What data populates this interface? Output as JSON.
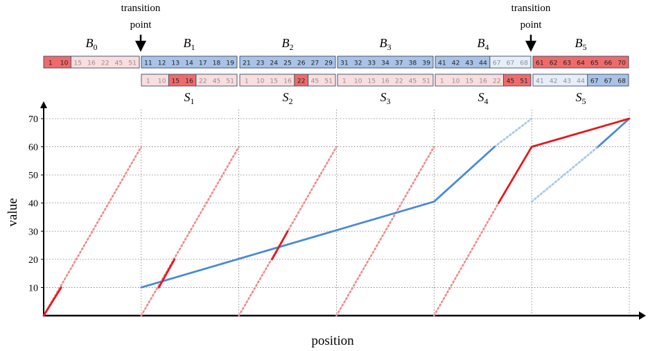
{
  "annotations": {
    "transition_label_line1": "transition",
    "transition_label_line2": "point",
    "xlabel": "position",
    "ylabel": "value"
  },
  "colors": {
    "red_strong": "#ef6b6b",
    "red_light": "#f8dede",
    "blue_strong": "#a9c3e6",
    "blue_light": "#e7eef8",
    "line_red": "#e8161b",
    "line_red_dotted": "#f08a8a",
    "line_blue": "#4a8ad6",
    "line_blue_dotted": "#a8c8ec"
  },
  "blocks_B": [
    {
      "label": "B",
      "sub": "0",
      "groups": [
        {
          "cells": [
            "1",
            "10"
          ],
          "style": "red"
        },
        {
          "cells": [
            "15",
            "16",
            "22",
            "45",
            "51"
          ],
          "style": "red-light"
        }
      ]
    },
    {
      "label": "B",
      "sub": "1",
      "groups": [
        {
          "cells": [
            "11",
            "12",
            "13",
            "14",
            "17",
            "18",
            "19"
          ],
          "style": "blue"
        }
      ]
    },
    {
      "label": "B",
      "sub": "2",
      "groups": [
        {
          "cells": [
            "21",
            "23",
            "24",
            "25",
            "26",
            "27",
            "29"
          ],
          "style": "blue"
        }
      ]
    },
    {
      "label": "B",
      "sub": "3",
      "groups": [
        {
          "cells": [
            "31",
            "32",
            "33",
            "34",
            "37",
            "38",
            "39"
          ],
          "style": "blue"
        }
      ]
    },
    {
      "label": "B",
      "sub": "4",
      "groups": [
        {
          "cells": [
            "41",
            "42",
            "43",
            "44"
          ],
          "style": "blue"
        },
        {
          "cells": [
            "67",
            "67",
            "68"
          ],
          "style": "blue-light"
        }
      ]
    },
    {
      "label": "B",
      "sub": "5",
      "groups": [
        {
          "cells": [
            "61",
            "62",
            "63",
            "64",
            "65",
            "66",
            "70"
          ],
          "style": "red"
        }
      ]
    }
  ],
  "blocks_S": [
    {
      "label": "S",
      "sub": "1",
      "groups": [
        {
          "cells": [
            "1",
            "10"
          ],
          "style": "red-light"
        },
        {
          "cells": [
            "15",
            "16"
          ],
          "style": "red"
        },
        {
          "cells": [
            "22",
            "45",
            "51"
          ],
          "style": "red-light"
        }
      ]
    },
    {
      "label": "S",
      "sub": "2",
      "groups": [
        {
          "cells": [
            "1",
            "10",
            "15",
            "16"
          ],
          "style": "red-light"
        },
        {
          "cells": [
            "22"
          ],
          "style": "red"
        },
        {
          "cells": [
            "45",
            "51"
          ],
          "style": "red-light"
        }
      ]
    },
    {
      "label": "S",
      "sub": "3",
      "groups": [
        {
          "cells": [
            "1",
            "10",
            "15",
            "16",
            "22",
            "45",
            "51"
          ],
          "style": "red-light"
        }
      ]
    },
    {
      "label": "S",
      "sub": "4",
      "groups": [
        {
          "cells": [
            "1",
            "10",
            "15",
            "16",
            "22"
          ],
          "style": "red-light"
        },
        {
          "cells": [
            "45",
            "51"
          ],
          "style": "red"
        }
      ]
    },
    {
      "label": "S",
      "sub": "5",
      "groups": [
        {
          "cells": [
            "41",
            "42",
            "43",
            "44"
          ],
          "style": "blue-light"
        },
        {
          "cells": [
            "67",
            "67",
            "68"
          ],
          "style": "blue"
        }
      ]
    }
  ],
  "chart_data": {
    "type": "line",
    "xlabel": "position",
    "ylabel": "value",
    "ylim": [
      0,
      70
    ],
    "xlim": [
      0,
      6
    ],
    "yticks": [
      "10",
      "20",
      "30",
      "40",
      "50",
      "60",
      "70"
    ],
    "grid": "dotted vertical at segment boundaries, dotted horizontal at y ticks",
    "segment_boundaries_x": [
      0,
      1,
      2,
      3,
      4,
      5,
      6
    ],
    "series": [
      {
        "style": "red-dotted",
        "points": [
          [
            0,
            0
          ],
          [
            1,
            60
          ]
        ]
      },
      {
        "style": "red-solid",
        "points": [
          [
            0,
            0
          ],
          [
            0.18,
            10
          ]
        ]
      },
      {
        "style": "red-dotted",
        "points": [
          [
            1,
            0
          ],
          [
            2,
            60
          ]
        ]
      },
      {
        "style": "red-solid",
        "points": [
          [
            1.18,
            10
          ],
          [
            1.34,
            20
          ]
        ]
      },
      {
        "style": "red-dotted",
        "points": [
          [
            2,
            0
          ],
          [
            3,
            60
          ]
        ]
      },
      {
        "style": "red-solid",
        "points": [
          [
            2.34,
            20
          ],
          [
            2.5,
            30
          ]
        ]
      },
      {
        "style": "red-dotted",
        "points": [
          [
            3,
            0
          ],
          [
            4,
            60
          ]
        ]
      },
      {
        "style": "red-dotted",
        "points": [
          [
            4,
            0
          ],
          [
            4.66,
            40
          ]
        ]
      },
      {
        "style": "red-solid",
        "points": [
          [
            4.66,
            40
          ],
          [
            5,
            60
          ]
        ]
      },
      {
        "style": "red-solid",
        "points": [
          [
            5,
            60
          ],
          [
            6,
            70
          ]
        ]
      },
      {
        "style": "blue-solid",
        "points": [
          [
            1,
            10
          ],
          [
            4,
            40.5
          ],
          [
            4.62,
            60
          ]
        ]
      },
      {
        "style": "blue-dotted",
        "points": [
          [
            4.62,
            60
          ],
          [
            5,
            70
          ]
        ]
      },
      {
        "style": "blue-dotted",
        "points": [
          [
            5,
            40.5
          ],
          [
            5.68,
            60
          ]
        ]
      },
      {
        "style": "blue-solid",
        "points": [
          [
            5.68,
            60
          ],
          [
            6,
            70
          ]
        ]
      }
    ]
  }
}
